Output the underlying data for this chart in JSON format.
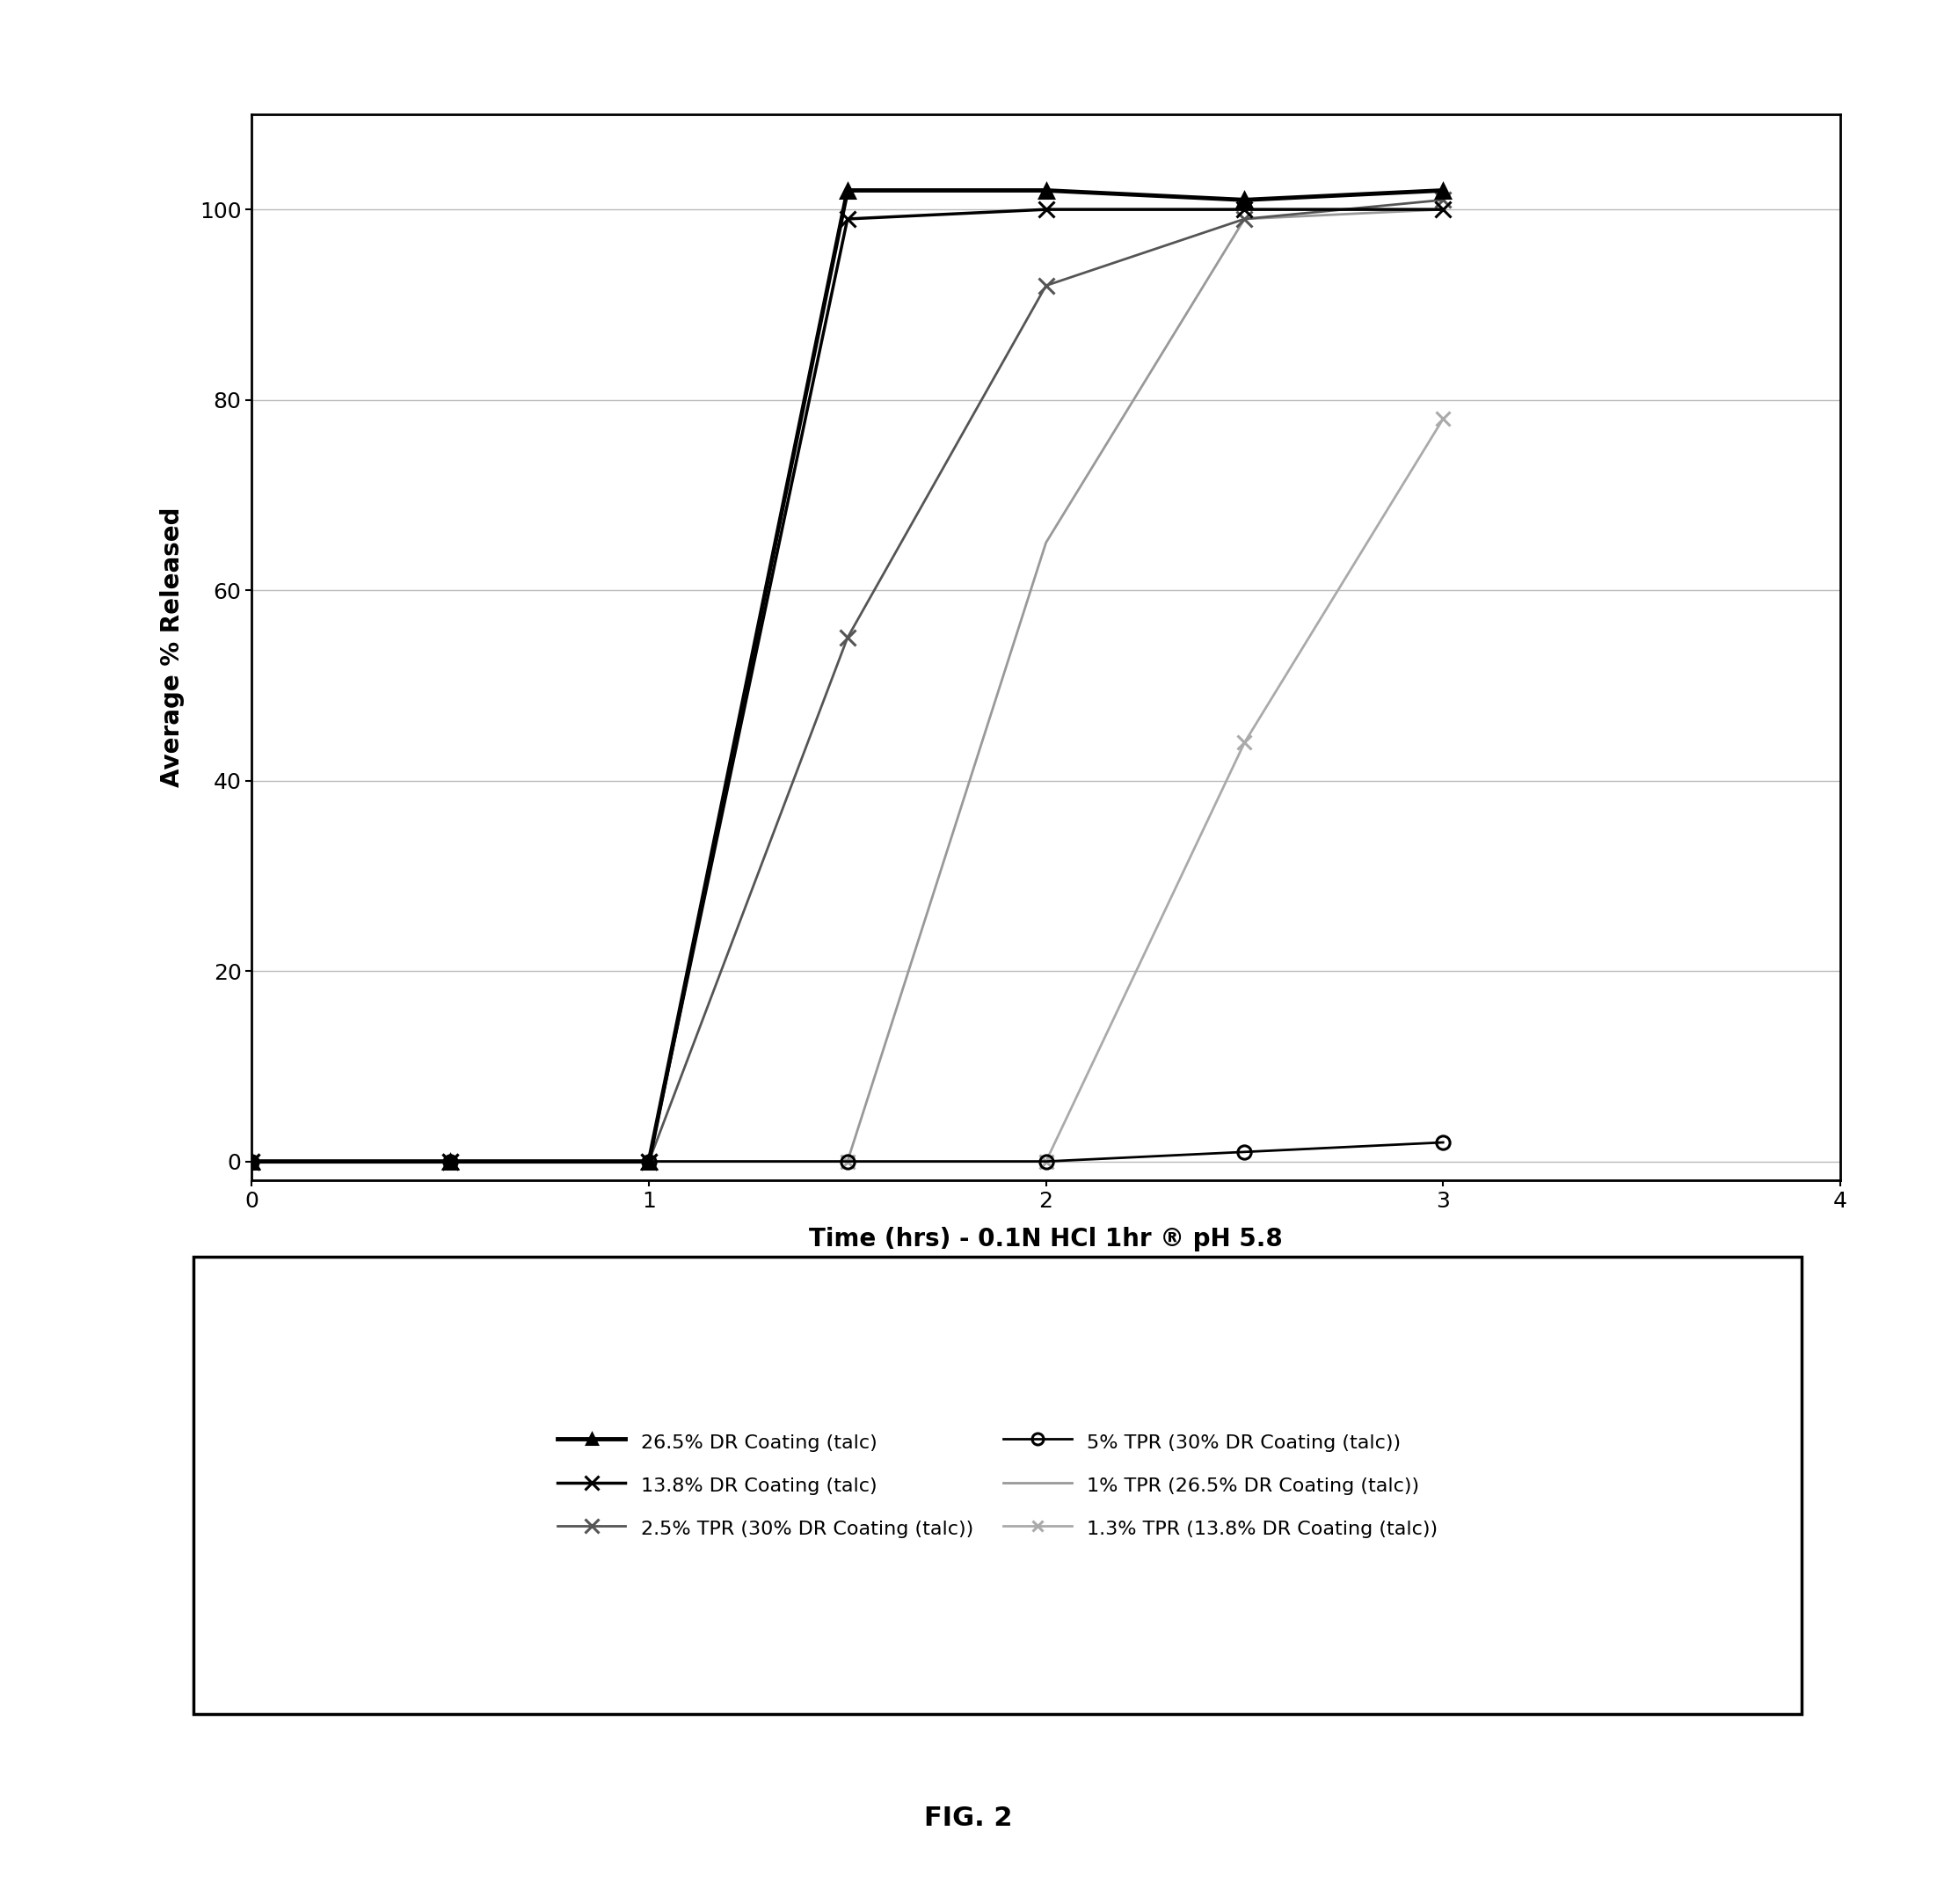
{
  "xlabel": "Time (hrs) - 0.1N HCl 1hr ® pH 5.8",
  "ylabel": "Average % Released",
  "xlim": [
    0,
    4
  ],
  "ylim": [
    -2,
    110
  ],
  "xticks": [
    0,
    1,
    2,
    3,
    4
  ],
  "yticks": [
    0,
    20,
    40,
    60,
    80,
    100
  ],
  "fig_caption": "FIG. 2",
  "series": [
    {
      "label": "26.5% DR Coating (talc)",
      "x": [
        0,
        0.5,
        1,
        1.5,
        2,
        2.5,
        3
      ],
      "y": [
        0,
        0,
        0,
        102,
        102,
        101,
        102
      ],
      "color": "#000000",
      "linewidth": 3.5,
      "marker": "^",
      "markersize": 11,
      "markerfacecolor": "#000000",
      "linestyle": "-",
      "zorder": 5
    },
    {
      "label": "13.8% DR Coating (talc)",
      "x": [
        0,
        0.5,
        1,
        1.5,
        2,
        2.5,
        3
      ],
      "y": [
        0,
        0,
        0,
        99,
        100,
        100,
        100
      ],
      "color": "#000000",
      "linewidth": 2.5,
      "marker": "x",
      "markersize": 13,
      "markerfacecolor": "#000000",
      "linestyle": "-",
      "zorder": 4
    },
    {
      "label": "2.5% TPR (30% DR Coating (talc))",
      "x": [
        0,
        0.5,
        1,
        1.5,
        2,
        2.5,
        3
      ],
      "y": [
        0,
        0,
        0,
        55,
        92,
        99,
        101
      ],
      "color": "#555555",
      "linewidth": 2.0,
      "marker": "x",
      "markersize": 13,
      "markerfacecolor": "#555555",
      "linestyle": "-",
      "zorder": 3
    },
    {
      "label": "5% TPR (30% DR Coating (talc))",
      "x": [
        0,
        0.5,
        1,
        1.5,
        2,
        2.5,
        3
      ],
      "y": [
        0,
        0,
        0,
        0,
        0,
        1,
        2
      ],
      "color": "#000000",
      "linewidth": 2.0,
      "marker": "o",
      "markersize": 11,
      "markerfacecolor": "none",
      "linestyle": "-",
      "zorder": 6
    },
    {
      "label": "1% TPR (26.5% DR Coating (talc))",
      "x": [
        0,
        0.5,
        1,
        1.5,
        2,
        2.5,
        3
      ],
      "y": [
        0,
        0,
        0,
        0,
        65,
        99,
        100
      ],
      "color": "#999999",
      "linewidth": 2.0,
      "marker": "none",
      "markersize": 5,
      "markerfacecolor": "#999999",
      "linestyle": "-",
      "zorder": 2
    },
    {
      "label": "1.3% TPR (13.8% DR Coating (talc))",
      "x": [
        0,
        0.5,
        1,
        1.5,
        2,
        2.5,
        3
      ],
      "y": [
        0,
        0,
        0,
        0,
        0,
        44,
        78
      ],
      "color": "#aaaaaa",
      "linewidth": 2.0,
      "marker": "x",
      "markersize": 11,
      "markerfacecolor": "#aaaaaa",
      "linestyle": "-",
      "zorder": 1
    }
  ],
  "grid_color": "#bbbbbb",
  "grid_linewidth": 1.0,
  "background_color": "#ffffff"
}
